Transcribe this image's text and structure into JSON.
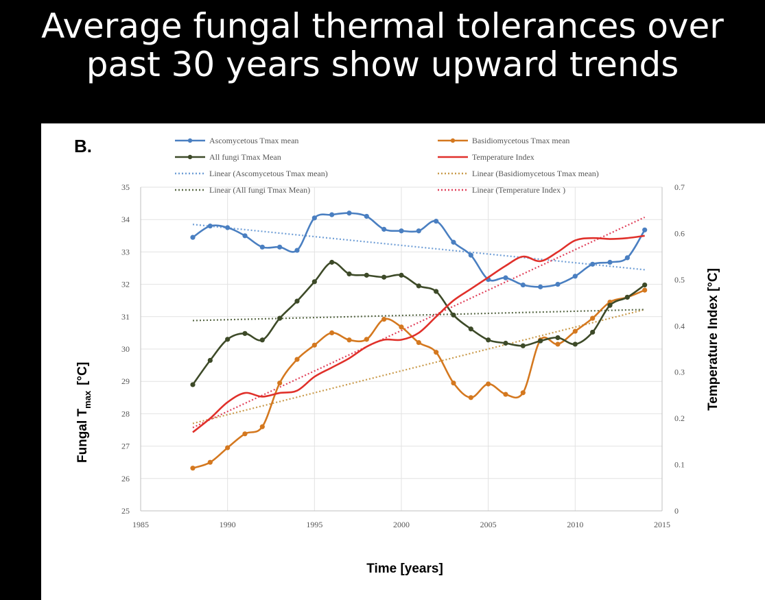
{
  "slide": {
    "title_line1": "Average fungal thermal tolerances over",
    "title_line2": "past 30 years show upward trends"
  },
  "colors": {
    "background": "#000000",
    "panel": "#ffffff",
    "ascomycetous": "#4a7fc1",
    "basidiomycetous": "#d4781f",
    "all_fungi": "#3d4a28",
    "temperature": "#e0302a",
    "trend_asco": "#6f9ed6",
    "trend_basidio": "#c99a4a",
    "trend_all": "#5a6a48",
    "trend_temp": "#e0405a",
    "grid": "#e2e2e2",
    "text": "#000000",
    "tick_text": "#555555"
  },
  "chart_data": {
    "type": "line",
    "panel_label": "B.",
    "xlabel": "Time [years]",
    "ylabel_main": "Fungal T",
    "ylabel_sub": "max",
    "ylabel_unit": "[°C]",
    "y2label": "Temperature Index  [°C]",
    "xlim": [
      1985,
      2015
    ],
    "ylim": [
      25,
      35
    ],
    "y2lim": [
      0,
      0.7
    ],
    "xticks": [
      1985,
      1990,
      1995,
      2000,
      2005,
      2010,
      2015
    ],
    "yticks": [
      25,
      26,
      27,
      28,
      29,
      30,
      31,
      32,
      33,
      34,
      35
    ],
    "y2ticks": [
      0,
      0.1,
      0.2,
      0.3,
      0.4,
      0.5,
      0.6,
      0.7
    ],
    "xtick_labels": [
      "1985",
      "1990",
      "1995",
      "2000",
      "2005",
      "2010",
      "2015"
    ],
    "ytick_labels": [
      "25",
      "26",
      "27",
      "28",
      "29",
      "30",
      "31",
      "32",
      "33",
      "34",
      "35"
    ],
    "y2tick_labels": [
      "0",
      "0.1",
      "0.2",
      "0.3",
      "0.4",
      "0.5",
      "0.6",
      "0.7"
    ],
    "grid": true,
    "legend_position": "top",
    "series": [
      {
        "name": "Ascomycetous Tmax mean",
        "axis": "left",
        "color_key": "ascomycetous",
        "markers": true,
        "x": [
          1988,
          1989,
          1990,
          1991,
          1992,
          1993,
          1994,
          1995,
          1996,
          1997,
          1998,
          1999,
          2000,
          2001,
          2002,
          2003,
          2004,
          2005,
          2006,
          2007,
          2008,
          2009,
          2010,
          2011,
          2012,
          2013,
          2014
        ],
        "values": [
          33.45,
          33.8,
          33.75,
          33.5,
          33.15,
          33.15,
          33.05,
          34.05,
          34.15,
          34.2,
          34.1,
          33.7,
          33.65,
          33.65,
          33.95,
          33.3,
          32.9,
          32.15,
          32.2,
          31.98,
          31.92,
          32.0,
          32.25,
          32.62,
          32.68,
          32.82,
          33.68
        ]
      },
      {
        "name": "Basidiomycetous Tmax mean",
        "axis": "left",
        "color_key": "basidiomycetous",
        "markers": true,
        "x": [
          1988,
          1989,
          1990,
          1991,
          1992,
          1993,
          1994,
          1995,
          1996,
          1997,
          1998,
          1999,
          2000,
          2001,
          2002,
          2003,
          2004,
          2005,
          2006,
          2007,
          2008,
          2009,
          2010,
          2011,
          2012,
          2013,
          2014
        ],
        "values": [
          26.32,
          26.5,
          26.95,
          27.38,
          27.6,
          28.95,
          29.68,
          30.12,
          30.5,
          30.28,
          30.3,
          30.92,
          30.68,
          30.2,
          29.9,
          28.95,
          28.5,
          28.92,
          28.6,
          28.65,
          30.28,
          30.15,
          30.55,
          30.95,
          31.45,
          31.6,
          31.82
        ]
      },
      {
        "name": "All fungi Tmax Mean",
        "axis": "left",
        "color_key": "all_fungi",
        "markers": true,
        "x": [
          1988,
          1989,
          1990,
          1991,
          1992,
          1993,
          1994,
          1995,
          1996,
          1997,
          1998,
          1999,
          2000,
          2001,
          2002,
          2003,
          2004,
          2005,
          2006,
          2007,
          2008,
          2009,
          2010,
          2011,
          2012,
          2013,
          2014
        ],
        "values": [
          28.9,
          29.65,
          30.3,
          30.48,
          30.28,
          30.95,
          31.48,
          32.08,
          32.68,
          32.32,
          32.28,
          32.22,
          32.28,
          31.95,
          31.78,
          31.05,
          30.62,
          30.28,
          30.18,
          30.1,
          30.25,
          30.35,
          30.15,
          30.52,
          31.35,
          31.6,
          31.98
        ]
      },
      {
        "name": "Temperature Index",
        "axis": "right",
        "color_key": "temperature",
        "markers": false,
        "x": [
          1988,
          1989,
          1990,
          1991,
          1992,
          1993,
          1994,
          1995,
          1996,
          1997,
          1998,
          1999,
          2000,
          2001,
          2002,
          2003,
          2004,
          2005,
          2006,
          2007,
          2008,
          2009,
          2010,
          2011,
          2012,
          2013,
          2014
        ],
        "values": [
          0.17,
          0.2,
          0.235,
          0.255,
          0.247,
          0.255,
          0.26,
          0.29,
          0.31,
          0.33,
          0.355,
          0.37,
          0.37,
          0.385,
          0.42,
          0.455,
          0.48,
          0.505,
          0.53,
          0.55,
          0.54,
          0.56,
          0.585,
          0.59,
          0.588,
          0.59,
          0.595
        ]
      }
    ],
    "trendlines": [
      {
        "name": "Linear (Ascomycetous Tmax mean)",
        "axis": "left",
        "color_key": "trend_asco",
        "x": [
          1988,
          2014
        ],
        "values": [
          33.85,
          32.45
        ]
      },
      {
        "name": "Linear (Basidiomycetous Tmax mean)",
        "axis": "left",
        "color_key": "trend_basidio",
        "x": [
          1988,
          2014
        ],
        "values": [
          27.7,
          31.22
        ]
      },
      {
        "name": "Linear (All fungi Tmax Mean)",
        "axis": "left",
        "color_key": "trend_all",
        "x": [
          1988,
          2014
        ],
        "values": [
          30.88,
          31.22
        ]
      },
      {
        "name": "Linear (Temperature Index )",
        "axis": "right",
        "color_key": "trend_temp",
        "x": [
          1988,
          2014
        ],
        "values": [
          0.18,
          0.635
        ]
      }
    ]
  }
}
